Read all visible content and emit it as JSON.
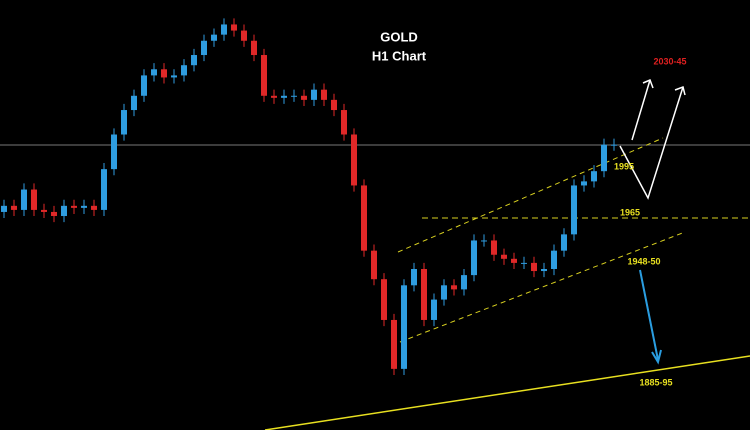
{
  "chart_data": {
    "type": "candlestick",
    "title": "GOLD",
    "subtitle": "H1 Chart",
    "annotations": [
      "2030-45",
      "1995",
      "1965",
      "1948-50",
      "1885-95"
    ],
    "up_color": "#2f9de0",
    "down_color": "#e02828",
    "ylim": [
      1861,
      2072
    ],
    "open": [
      1968,
      1971,
      1969,
      1979,
      1969,
      1968,
      1966,
      1971,
      1970,
      1971,
      1969,
      1989,
      2006,
      2018,
      2025,
      2035,
      2038,
      2034,
      2035,
      2040,
      2045,
      2052,
      2055,
      2060,
      2057,
      2052,
      2045,
      2025,
      2024,
      2025,
      2025,
      2023,
      2028,
      2023,
      2018,
      2006,
      1981,
      1949,
      1935,
      1915,
      1891,
      1932,
      1940,
      1915,
      1925,
      1932,
      1930,
      1937,
      1954,
      1954,
      1947,
      1945,
      1943,
      1943,
      1939,
      1940,
      1949,
      1957,
      1981,
      1983,
      1988,
      2001
    ],
    "high": [
      1974,
      1974,
      1982,
      1982,
      1972,
      1971,
      1974,
      1974,
      1974,
      1974,
      1992,
      2009,
      2021,
      2028,
      2038,
      2041,
      2041,
      2038,
      2043,
      2048,
      2055,
      2058,
      2063,
      2063,
      2060,
      2055,
      2048,
      2028,
      2028,
      2028,
      2028,
      2031,
      2031,
      2026,
      2021,
      2009,
      1984,
      1952,
      1938,
      1918,
      1935,
      1943,
      1943,
      1928,
      1935,
      1935,
      1940,
      1957,
      1957,
      1957,
      1950,
      1948,
      1946,
      1946,
      1943,
      1952,
      1960,
      1984,
      1986,
      1991,
      2004,
      2004
    ],
    "low": [
      1965,
      1966,
      1966,
      1966,
      1965,
      1963,
      1963,
      1967,
      1967,
      1966,
      1966,
      1986,
      2003,
      2015,
      2022,
      2032,
      2031,
      2031,
      2032,
      2037,
      2042,
      2049,
      2052,
      2054,
      2049,
      2042,
      2022,
      2021,
      2021,
      2022,
      2020,
      2020,
      2020,
      2015,
      2003,
      1978,
      1946,
      1932,
      1912,
      1888,
      1888,
      1929,
      1912,
      1912,
      1922,
      1927,
      1927,
      1934,
      1951,
      1944,
      1942,
      1940,
      1940,
      1936,
      1936,
      1937,
      1946,
      1954,
      1978,
      1980,
      1985,
      1998
    ],
    "close": [
      1971,
      1969,
      1979,
      1969,
      1968,
      1966,
      1971,
      1970,
      1971,
      1969,
      1989,
      2006,
      2018,
      2025,
      2035,
      2038,
      2034,
      2035,
      2040,
      2045,
      2052,
      2055,
      2060,
      2057,
      2052,
      2045,
      2025,
      2024,
      2025,
      2025,
      2023,
      2028,
      2023,
      2018,
      2006,
      1981,
      1949,
      1935,
      1915,
      1891,
      1932,
      1940,
      1915,
      1925,
      1932,
      1930,
      1937,
      1954,
      1954,
      1947,
      1945,
      1943,
      1943,
      1939,
      1940,
      1949,
      1957,
      1981,
      1983,
      1988,
      2001,
      2001
    ]
  }
}
